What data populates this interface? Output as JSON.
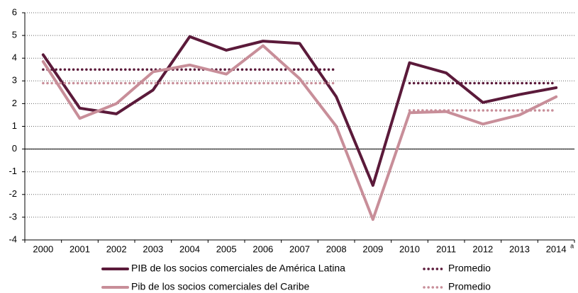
{
  "chart_data": {
    "type": "line",
    "categories": [
      "2000",
      "2001",
      "2002",
      "2003",
      "2004",
      "2005",
      "2006",
      "2007",
      "2008",
      "2009",
      "2010",
      "2011",
      "2012",
      "2013",
      "2014"
    ],
    "last_category_note": "a",
    "series": [
      {
        "name": "PIB de los socios comerciales de América Latina",
        "color": "#5b1a3a",
        "dash": "solid",
        "values": [
          4.15,
          1.8,
          1.55,
          2.6,
          4.95,
          4.35,
          4.75,
          4.65,
          2.3,
          -1.6,
          3.8,
          3.35,
          2.05,
          2.4,
          2.7
        ]
      },
      {
        "name": "Promedio",
        "color": "#5b1a3a",
        "dash": "dotted",
        "values": [
          3.5,
          3.5,
          3.5,
          3.5,
          3.5,
          3.5,
          3.5,
          3.5,
          3.5,
          null,
          2.9,
          2.9,
          2.9,
          2.9,
          2.9
        ]
      },
      {
        "name": "Pib de los socios comerciales del Caribe",
        "color": "#c88e99",
        "dash": "solid",
        "values": [
          3.85,
          1.35,
          2.0,
          3.4,
          3.7,
          3.3,
          4.55,
          3.1,
          1.0,
          -3.1,
          1.6,
          1.65,
          1.1,
          1.5,
          2.3
        ]
      },
      {
        "name": "Promedio",
        "color": "#c88e99",
        "dash": "dotted",
        "values": [
          2.9,
          2.9,
          2.9,
          2.9,
          2.9,
          2.9,
          2.9,
          2.9,
          2.9,
          null,
          1.7,
          1.7,
          1.7,
          1.7,
          1.7
        ]
      }
    ],
    "ylim": [
      -4,
      6
    ],
    "yticks": [
      -4,
      -3,
      -2,
      -1,
      0,
      1,
      2,
      3,
      4,
      5,
      6
    ],
    "grid": true
  }
}
